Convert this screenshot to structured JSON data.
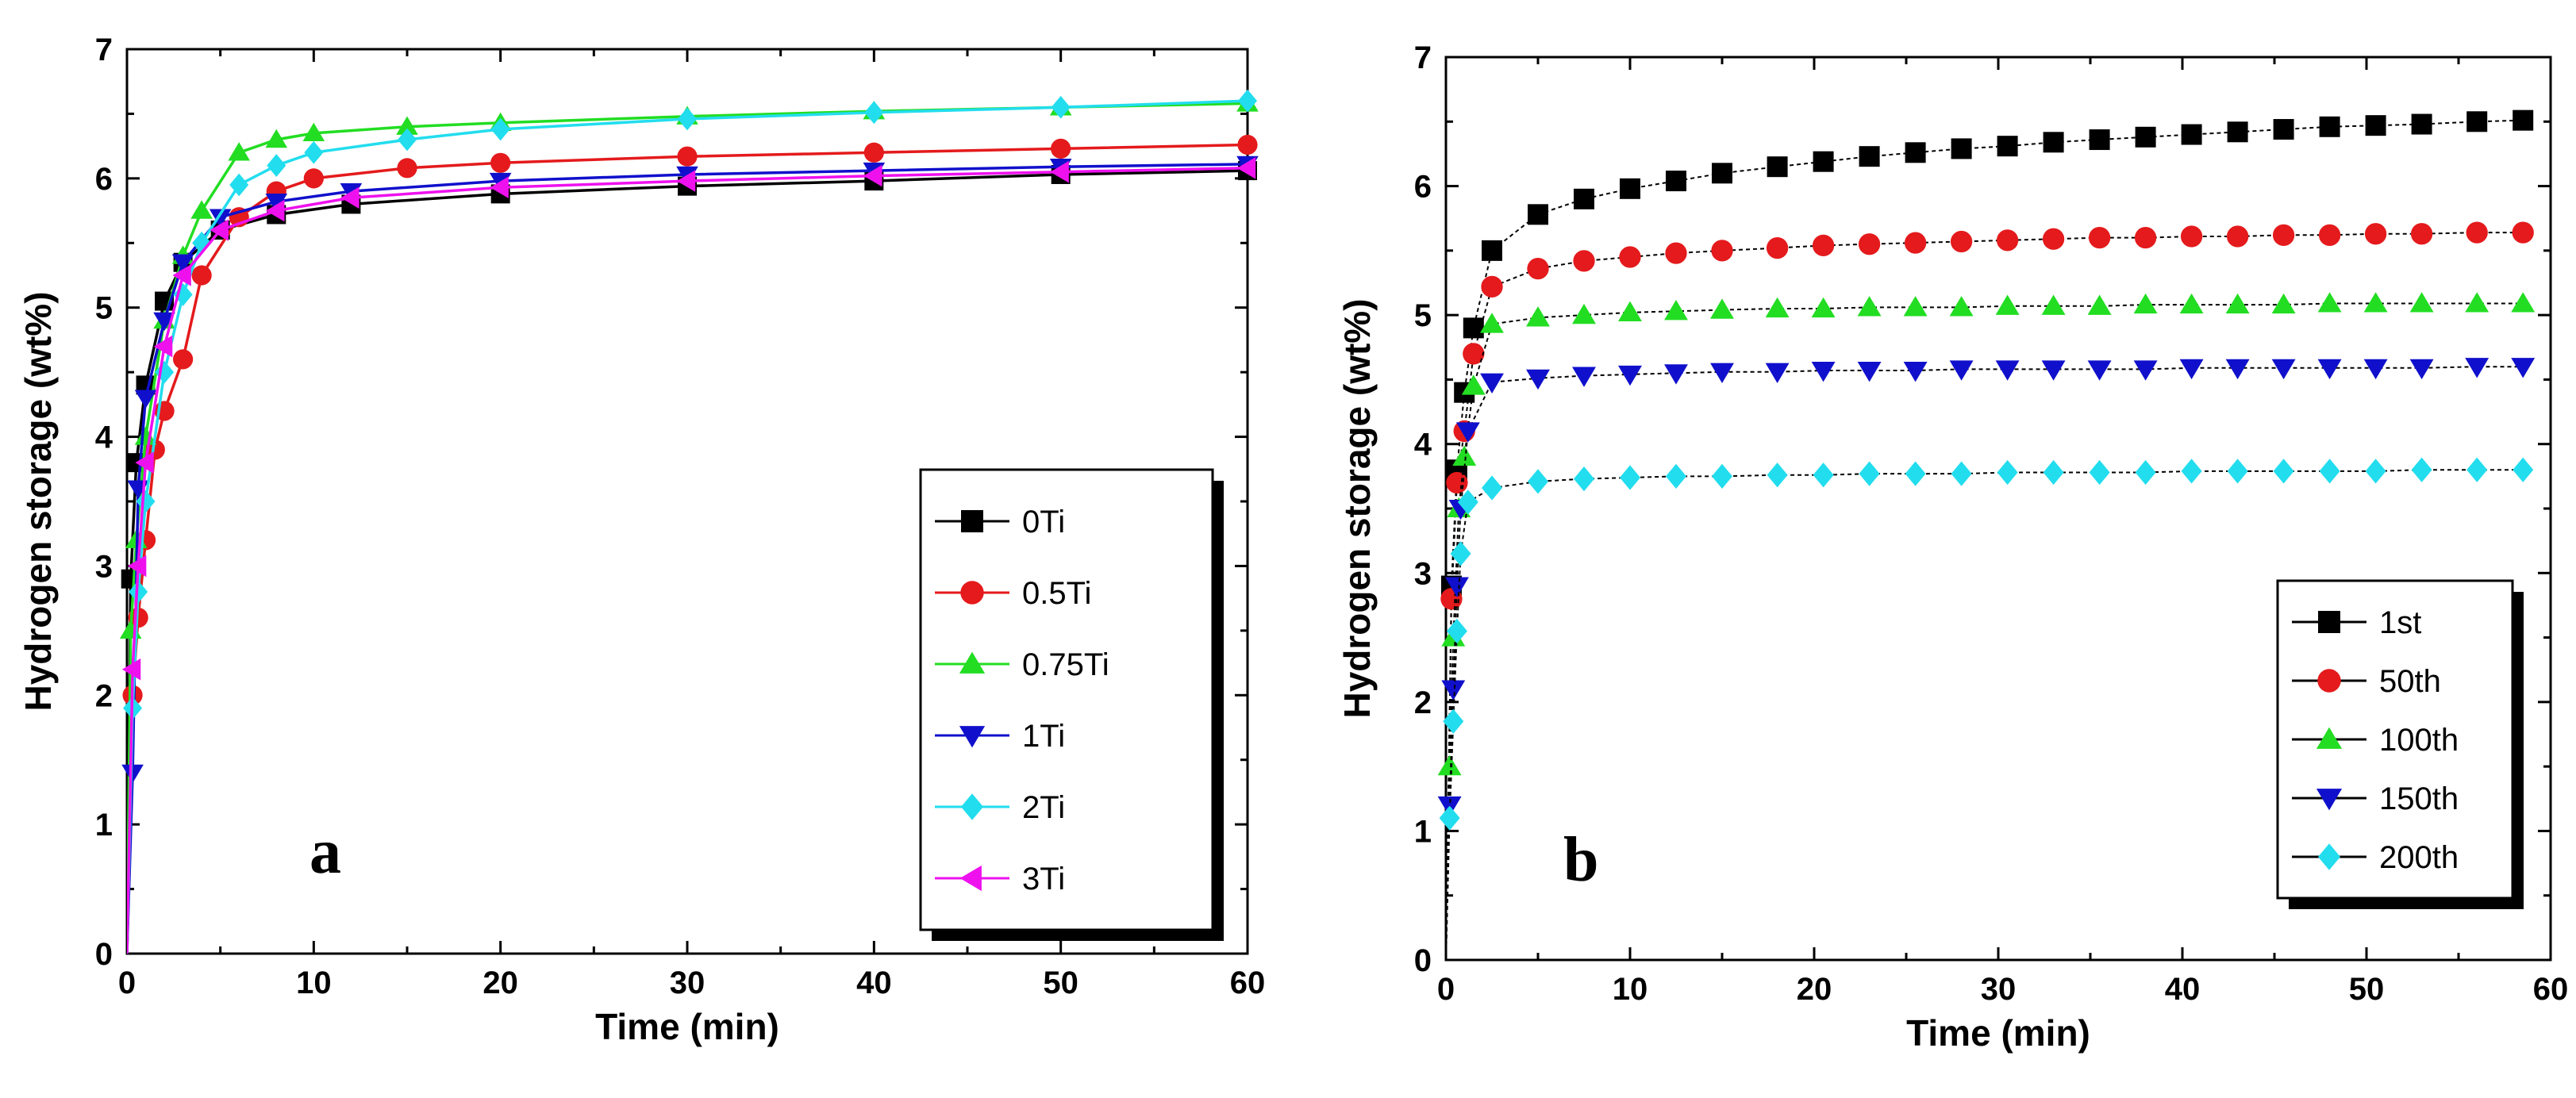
{
  "chart_data": [
    {
      "type": "line",
      "panel_label": "a",
      "xlabel": "Time (min)",
      "ylabel": "Hydrogen storage (wt%)",
      "xlim": [
        0,
        60
      ],
      "ylim": [
        0,
        7
      ],
      "xticks": [
        "0",
        "10",
        "20",
        "30",
        "40",
        "50",
        "60"
      ],
      "yticks": [
        "0",
        "1",
        "2",
        "3",
        "4",
        "5",
        "6",
        "7"
      ],
      "legend_position": "center-right",
      "series": [
        {
          "name": "0Ti",
          "color": "#000000",
          "marker": "square",
          "x": [
            0,
            0.2,
            0.5,
            1,
            2,
            3,
            5,
            8,
            12,
            20,
            30,
            40,
            50,
            60
          ],
          "y": [
            0,
            2.9,
            3.8,
            4.4,
            5.05,
            5.35,
            5.6,
            5.72,
            5.8,
            5.88,
            5.94,
            5.98,
            6.03,
            6.06
          ]
        },
        {
          "name": "0.5Ti",
          "color": "#e41a1c",
          "marker": "circle",
          "x": [
            0,
            0.3,
            0.6,
            1,
            1.5,
            2,
            3,
            4,
            6,
            8,
            10,
            15,
            20,
            30,
            40,
            50,
            60
          ],
          "y": [
            0,
            2.0,
            2.6,
            3.2,
            3.9,
            4.2,
            4.6,
            5.25,
            5.7,
            5.9,
            6.0,
            6.08,
            6.12,
            6.17,
            6.2,
            6.23,
            6.26
          ]
        },
        {
          "name": "0.75Ti",
          "color": "#22dd22",
          "marker": "triangle-up",
          "x": [
            0,
            0.2,
            0.5,
            1,
            2,
            3,
            4,
            6,
            8,
            10,
            15,
            20,
            30,
            40,
            50,
            60
          ],
          "y": [
            0,
            2.5,
            3.2,
            4.0,
            4.9,
            5.4,
            5.75,
            6.2,
            6.3,
            6.35,
            6.4,
            6.43,
            6.48,
            6.52,
            6.55,
            6.58
          ]
        },
        {
          "name": "1Ti",
          "color": "#1010cc",
          "marker": "triangle-down",
          "x": [
            0,
            0.3,
            0.6,
            1,
            2,
            3,
            5,
            8,
            12,
            20,
            30,
            40,
            50,
            60
          ],
          "y": [
            0,
            1.4,
            3.6,
            4.3,
            4.9,
            5.35,
            5.7,
            5.82,
            5.9,
            5.98,
            6.03,
            6.06,
            6.09,
            6.11
          ]
        },
        {
          "name": "2Ti",
          "color": "#22ddee",
          "marker": "diamond",
          "x": [
            0,
            0.3,
            0.6,
            1,
            2,
            3,
            4,
            6,
            8,
            10,
            15,
            20,
            30,
            40,
            50,
            60
          ],
          "y": [
            0,
            1.9,
            2.8,
            3.5,
            4.5,
            5.1,
            5.5,
            5.95,
            6.1,
            6.2,
            6.3,
            6.38,
            6.46,
            6.51,
            6.55,
            6.6
          ]
        },
        {
          "name": "3Ti",
          "color": "#ee11ee",
          "marker": "triangle-left",
          "x": [
            0,
            0.3,
            0.6,
            1,
            2,
            3,
            5,
            8,
            12,
            20,
            30,
            40,
            50,
            60
          ],
          "y": [
            0,
            2.2,
            3.0,
            3.8,
            4.7,
            5.25,
            5.6,
            5.75,
            5.85,
            5.93,
            5.98,
            6.02,
            6.05,
            6.08
          ]
        }
      ]
    },
    {
      "type": "line",
      "panel_label": "b",
      "xlabel": "Time (min)",
      "ylabel": "Hydrogen storage (wt%)",
      "xlim": [
        0,
        60
      ],
      "ylim": [
        0,
        7
      ],
      "xticks": [
        "0",
        "10",
        "20",
        "30",
        "40",
        "50",
        "60"
      ],
      "yticks": [
        "0",
        "1",
        "2",
        "3",
        "4",
        "5",
        "6",
        "7"
      ],
      "legend_position": "lower-right",
      "series": [
        {
          "name": "1st",
          "color": "#000000",
          "marker": "square",
          "x": [
            0,
            0.3,
            0.6,
            1,
            1.5,
            2.5,
            5,
            7.5,
            10,
            12.5,
            15,
            18,
            20.5,
            23,
            25.5,
            28,
            30.5,
            33,
            35.5,
            38,
            40.5,
            43,
            45.5,
            48,
            50.5,
            53,
            56,
            58.5
          ],
          "y": [
            0,
            2.9,
            3.8,
            4.4,
            4.9,
            5.5,
            5.78,
            5.9,
            5.98,
            6.04,
            6.1,
            6.15,
            6.19,
            6.23,
            6.26,
            6.29,
            6.31,
            6.34,
            6.36,
            6.38,
            6.4,
            6.42,
            6.44,
            6.46,
            6.47,
            6.48,
            6.5,
            6.51
          ]
        },
        {
          "name": "50th",
          "color": "#e41a1c",
          "marker": "circle",
          "x": [
            0,
            0.3,
            0.6,
            1,
            1.5,
            2.5,
            5,
            7.5,
            10,
            12.5,
            15,
            18,
            20.5,
            23,
            25.5,
            28,
            30.5,
            33,
            35.5,
            38,
            40.5,
            43,
            45.5,
            48,
            50.5,
            53,
            56,
            58.5
          ],
          "y": [
            0,
            2.8,
            3.7,
            4.1,
            4.7,
            5.22,
            5.36,
            5.42,
            5.45,
            5.48,
            5.5,
            5.52,
            5.54,
            5.55,
            5.56,
            5.57,
            5.58,
            5.59,
            5.6,
            5.6,
            5.61,
            5.61,
            5.62,
            5.62,
            5.63,
            5.63,
            5.64,
            5.64
          ]
        },
        {
          "name": "100th",
          "color": "#22dd22",
          "marker": "triangle-up",
          "x": [
            0,
            0.2,
            0.4,
            0.7,
            1,
            1.5,
            2.5,
            5,
            7.5,
            10,
            12.5,
            15,
            18,
            20.5,
            23,
            25.5,
            28,
            30.5,
            33,
            35.5,
            38,
            40.5,
            43,
            45.5,
            48,
            50.5,
            53,
            56,
            58.5
          ],
          "y": [
            0,
            1.5,
            2.5,
            3.5,
            3.9,
            4.45,
            4.93,
            4.98,
            5.0,
            5.02,
            5.03,
            5.04,
            5.05,
            5.05,
            5.06,
            5.06,
            5.06,
            5.07,
            5.07,
            5.07,
            5.08,
            5.08,
            5.08,
            5.08,
            5.09,
            5.09,
            5.09,
            5.09,
            5.09
          ]
        },
        {
          "name": "150th",
          "color": "#1010cc",
          "marker": "triangle-down",
          "x": [
            0,
            0.2,
            0.4,
            0.6,
            0.8,
            1.2,
            2.5,
            5,
            7.5,
            10,
            12.5,
            15,
            18,
            20.5,
            23,
            25.5,
            28,
            30.5,
            33,
            35.5,
            38,
            40.5,
            43,
            45.5,
            48,
            50.5,
            53,
            56,
            58.5
          ],
          "y": [
            0,
            1.2,
            2.1,
            2.9,
            3.5,
            4.1,
            4.48,
            4.51,
            4.53,
            4.54,
            4.55,
            4.56,
            4.56,
            4.57,
            4.57,
            4.57,
            4.58,
            4.58,
            4.58,
            4.58,
            4.58,
            4.59,
            4.59,
            4.59,
            4.59,
            4.59,
            4.59,
            4.6,
            4.6
          ]
        },
        {
          "name": "200th",
          "color": "#22ddee",
          "marker": "diamond",
          "x": [
            0,
            0.2,
            0.4,
            0.6,
            0.8,
            1.2,
            2.5,
            5,
            7.5,
            10,
            12.5,
            15,
            18,
            20.5,
            23,
            25.5,
            28,
            30.5,
            33,
            35.5,
            38,
            40.5,
            43,
            45.5,
            48,
            50.5,
            53,
            56,
            58.5
          ],
          "y": [
            0,
            1.1,
            1.85,
            2.55,
            3.15,
            3.55,
            3.66,
            3.71,
            3.73,
            3.74,
            3.75,
            3.75,
            3.76,
            3.76,
            3.77,
            3.77,
            3.77,
            3.78,
            3.78,
            3.78,
            3.78,
            3.79,
            3.79,
            3.79,
            3.79,
            3.79,
            3.8,
            3.8,
            3.8
          ]
        }
      ]
    }
  ]
}
